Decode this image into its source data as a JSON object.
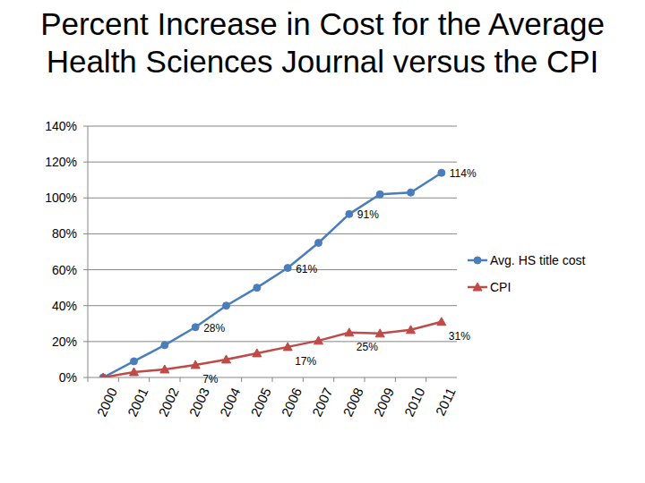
{
  "chart_data": {
    "type": "line",
    "title": "Percent Increase in Cost for the Average Health Sciences Journal versus the CPI",
    "categories": [
      "2000",
      "2001",
      "2002",
      "2003",
      "2004",
      "2005",
      "2006",
      "2007",
      "2008",
      "2009",
      "2010",
      "2011"
    ],
    "series": [
      {
        "name": "Avg. HS title cost",
        "color": "#4a7ebb",
        "marker": "circle",
        "line_style": "solid",
        "values": [
          0,
          9,
          18,
          28,
          40,
          50,
          61,
          75,
          91,
          102,
          103,
          114
        ],
        "value_labels": [
          null,
          null,
          null,
          "28%",
          null,
          null,
          "61%",
          null,
          "91%",
          null,
          null,
          "114%"
        ]
      },
      {
        "name": "CPI",
        "color": "#be4b48",
        "marker": "triangle",
        "line_style": "solid",
        "values": [
          0,
          3,
          4.5,
          7,
          10,
          13.5,
          17,
          20.5,
          25,
          24.5,
          26.5,
          31
        ],
        "value_labels": [
          null,
          null,
          null,
          "7%",
          null,
          null,
          "17%",
          null,
          "25%",
          null,
          null,
          "31%"
        ]
      }
    ],
    "ylim": [
      0,
      140
    ],
    "yticks": [
      {
        "value": 0,
        "label": "0%"
      },
      {
        "value": 20,
        "label": "20%"
      },
      {
        "value": 40,
        "label": "40%"
      },
      {
        "value": 60,
        "label": "60%"
      },
      {
        "value": 80,
        "label": "80%"
      },
      {
        "value": 100,
        "label": "100%"
      },
      {
        "value": 120,
        "label": "120%"
      },
      {
        "value": 140,
        "label": "140%"
      }
    ],
    "grid": true,
    "legend": "right"
  }
}
